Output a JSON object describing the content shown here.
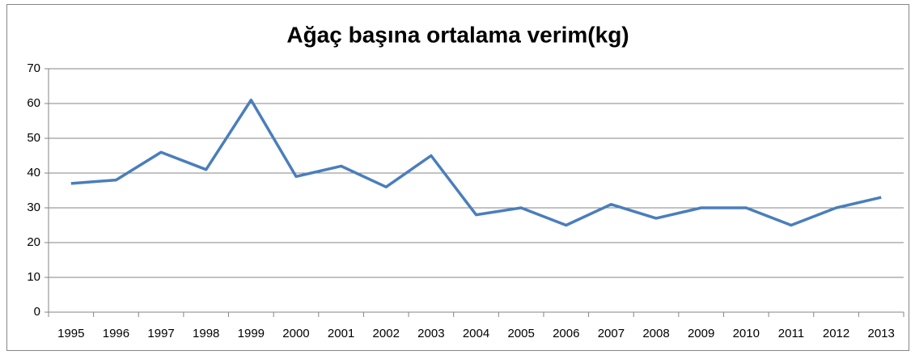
{
  "chart_data": {
    "type": "line",
    "title": "Ağaç başına ortalama verim(kg)",
    "categories": [
      "1995",
      "1996",
      "1997",
      "1998",
      "1999",
      "2000",
      "2001",
      "2002",
      "2003",
      "2004",
      "2005",
      "2006",
      "2007",
      "2008",
      "2009",
      "2010",
      "2011",
      "2012",
      "2013"
    ],
    "values": [
      37,
      38,
      46,
      41,
      61,
      39,
      42,
      36,
      45,
      28,
      30,
      25,
      31,
      27,
      30,
      30,
      25,
      30,
      33
    ],
    "color": "#4a7ebb",
    "ylim": [
      0,
      70
    ],
    "yticks": [
      0,
      10,
      20,
      30,
      40,
      50,
      60,
      70
    ],
    "grid": true
  }
}
